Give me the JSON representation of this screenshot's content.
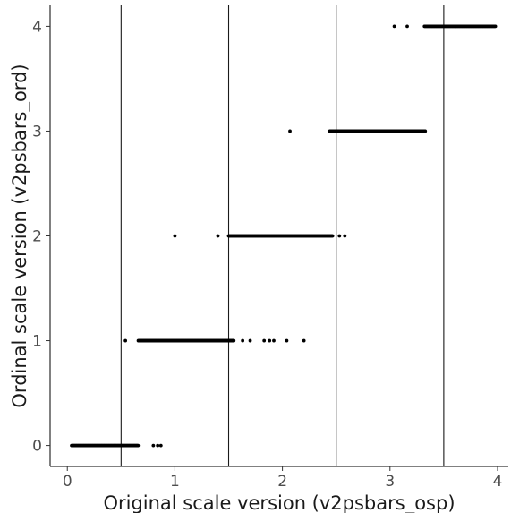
{
  "chart_data": {
    "type": "scatter",
    "title": "",
    "xlabel": "Original scale version (v2psbars_osp)",
    "ylabel": "Ordinal scale version (v2psbars_ord)",
    "xlim": [
      -0.16,
      4.1
    ],
    "ylim": [
      -0.2,
      4.2
    ],
    "x_ticks": [
      0,
      1,
      2,
      3,
      4
    ],
    "y_ticks": [
      0,
      1,
      2,
      3,
      4
    ],
    "x_tick_labels": [
      "0",
      "1",
      "2",
      "3",
      "4"
    ],
    "y_tick_labels": [
      "0",
      "1",
      "2",
      "3",
      "4"
    ],
    "vertical_lines": [
      0.5,
      1.5,
      2.5,
      3.5
    ],
    "grid": false,
    "series": [
      {
        "values": [
          {
            "y": 0,
            "range": [
              0.04,
              0.66
            ]
          },
          {
            "y": 0,
            "x": 0.8
          },
          {
            "y": 0,
            "x": 0.84
          },
          {
            "y": 0,
            "x": 0.87
          },
          {
            "y": 1,
            "x": 0.54
          },
          {
            "y": 1,
            "range": [
              0.66,
              1.55
            ]
          },
          {
            "y": 1,
            "x": 1.63
          },
          {
            "y": 1,
            "x": 1.7
          },
          {
            "y": 1,
            "x": 1.83
          },
          {
            "y": 1,
            "x": 1.88
          },
          {
            "y": 1,
            "x": 1.92
          },
          {
            "y": 1,
            "x": 2.04
          },
          {
            "y": 1,
            "x": 2.2
          },
          {
            "y": 2,
            "x": 1.0
          },
          {
            "y": 2,
            "x": 1.4
          },
          {
            "y": 2,
            "range": [
              1.5,
              2.47
            ]
          },
          {
            "y": 2,
            "x": 2.53
          },
          {
            "y": 2,
            "x": 2.58
          },
          {
            "y": 3,
            "x": 2.07
          },
          {
            "y": 3,
            "range": [
              2.44,
              3.33
            ]
          },
          {
            "y": 4,
            "x": 3.04
          },
          {
            "y": 4,
            "x": 3.16
          },
          {
            "y": 4,
            "range": [
              3.32,
              3.98
            ]
          }
        ]
      }
    ]
  }
}
